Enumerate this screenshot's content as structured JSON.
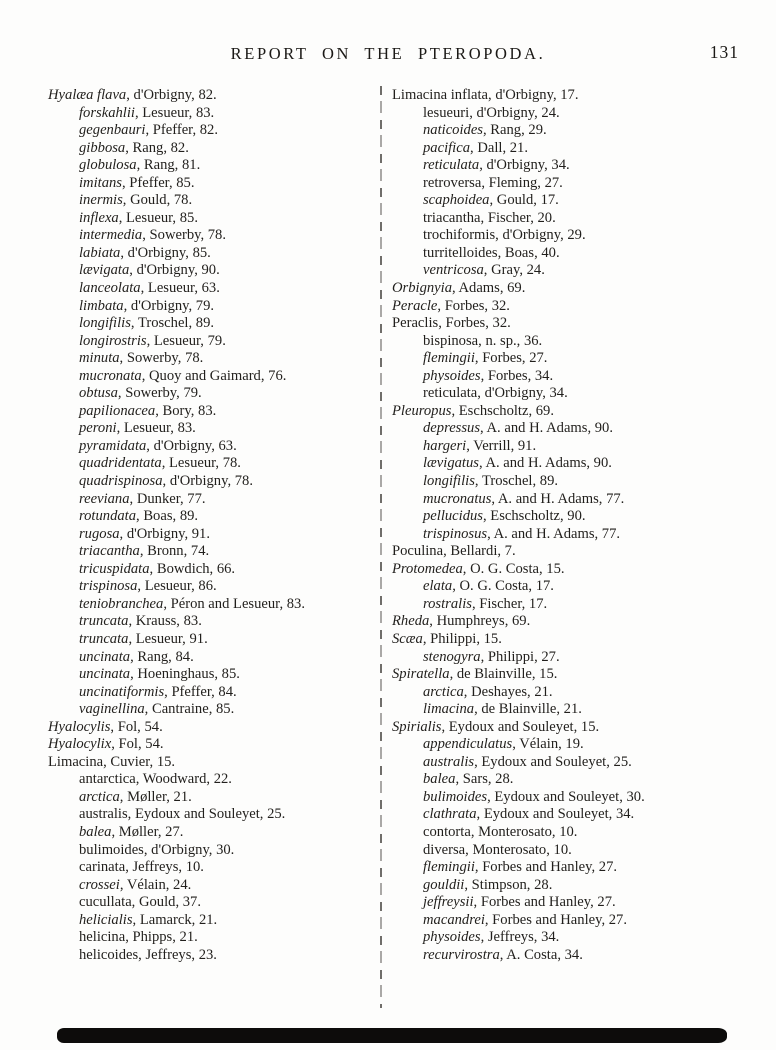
{
  "header": {
    "title": "REPORT ON THE PTEROPODA.",
    "page_number": "131"
  },
  "columns": {
    "left": [
      {
        "indent": 0,
        "italic": true,
        "name": "Hyalæa flava",
        "ref": "d'Orbigny, 82."
      },
      {
        "indent": 1,
        "italic": true,
        "name": "forskahlii",
        "ref": "Lesueur, 83."
      },
      {
        "indent": 1,
        "italic": true,
        "name": "gegenbauri",
        "ref": "Pfeffer, 82."
      },
      {
        "indent": 1,
        "italic": true,
        "name": "gibbosa",
        "ref": "Rang, 82."
      },
      {
        "indent": 1,
        "italic": true,
        "name": "globulosa",
        "ref": "Rang, 81."
      },
      {
        "indent": 1,
        "italic": true,
        "name": "imitans",
        "ref": "Pfeffer, 85."
      },
      {
        "indent": 1,
        "italic": true,
        "name": "inermis",
        "ref": "Gould, 78."
      },
      {
        "indent": 1,
        "italic": true,
        "name": "inflexa",
        "ref": "Lesueur, 85."
      },
      {
        "indent": 1,
        "italic": true,
        "name": "intermedia",
        "ref": "Sowerby, 78."
      },
      {
        "indent": 1,
        "italic": true,
        "name": "labiata",
        "ref": "d'Orbigny, 85."
      },
      {
        "indent": 1,
        "italic": true,
        "name": "lævigata",
        "ref": "d'Orbigny, 90."
      },
      {
        "indent": 1,
        "italic": true,
        "name": "lanceolata",
        "ref": "Lesueur, 63."
      },
      {
        "indent": 1,
        "italic": true,
        "name": "limbata",
        "ref": "d'Orbigny, 79."
      },
      {
        "indent": 1,
        "italic": true,
        "name": "longifilis",
        "ref": "Troschel, 89."
      },
      {
        "indent": 1,
        "italic": true,
        "name": "longirostris",
        "ref": "Lesueur, 79."
      },
      {
        "indent": 1,
        "italic": true,
        "name": "minuta",
        "ref": "Sowerby, 78."
      },
      {
        "indent": 1,
        "italic": true,
        "name": "mucronata",
        "ref": "Quoy and Gaimard, 76."
      },
      {
        "indent": 1,
        "italic": true,
        "name": "obtusa",
        "ref": "Sowerby, 79."
      },
      {
        "indent": 1,
        "italic": true,
        "name": "papilionacea",
        "ref": "Bory, 83."
      },
      {
        "indent": 1,
        "italic": true,
        "name": "peroni",
        "ref": "Lesueur, 83."
      },
      {
        "indent": 1,
        "italic": true,
        "name": "pyramidata",
        "ref": "d'Orbigny, 63."
      },
      {
        "indent": 1,
        "italic": true,
        "name": "quadridentata",
        "ref": "Lesueur, 78."
      },
      {
        "indent": 1,
        "italic": true,
        "name": "quadrispinosa",
        "ref": "d'Orbigny, 78."
      },
      {
        "indent": 1,
        "italic": true,
        "name": "reeviana",
        "ref": "Dunker, 77."
      },
      {
        "indent": 1,
        "italic": true,
        "name": "rotundata",
        "ref": "Boas, 89."
      },
      {
        "indent": 1,
        "italic": true,
        "name": "rugosa",
        "ref": "d'Orbigny, 91."
      },
      {
        "indent": 1,
        "italic": true,
        "name": "triacantha",
        "ref": "Bronn, 74."
      },
      {
        "indent": 1,
        "italic": true,
        "name": "tricuspidata",
        "ref": "Bowdich, 66."
      },
      {
        "indent": 1,
        "italic": true,
        "name": "trispinosa",
        "ref": "Lesueur, 86."
      },
      {
        "indent": 1,
        "italic": true,
        "name": "teniobranchea",
        "ref": "Péron and Lesueur, 83."
      },
      {
        "indent": 1,
        "italic": true,
        "name": "truncata",
        "ref": "Krauss, 83."
      },
      {
        "indent": 1,
        "italic": true,
        "name": "truncata",
        "ref": "Lesueur, 91."
      },
      {
        "indent": 1,
        "italic": true,
        "name": "uncinata",
        "ref": "Rang, 84."
      },
      {
        "indent": 1,
        "italic": true,
        "name": "uncinata",
        "ref": "Hoeninghaus, 85."
      },
      {
        "indent": 1,
        "italic": true,
        "name": "uncinatiformis",
        "ref": "Pfeffer, 84."
      },
      {
        "indent": 1,
        "italic": true,
        "name": "vaginellina",
        "ref": "Cantraine, 85."
      },
      {
        "indent": 0,
        "italic": true,
        "name": "Hyalocylis",
        "ref": "Fol, 54."
      },
      {
        "indent": 0,
        "italic": true,
        "name": "Hyalocylix",
        "ref": "Fol, 54."
      },
      {
        "indent": 0,
        "italic": false,
        "name": "Limacina",
        "ref": "Cuvier, 15."
      },
      {
        "indent": 1,
        "italic": false,
        "name": "antarctica",
        "ref": "Woodward, 22."
      },
      {
        "indent": 1,
        "italic": true,
        "name": "arctica",
        "ref": "Møller, 21."
      },
      {
        "indent": 1,
        "italic": false,
        "name": "australis",
        "ref": "Eydoux and Souleyet, 25."
      },
      {
        "indent": 1,
        "italic": true,
        "name": "balea",
        "ref": "Møller, 27."
      },
      {
        "indent": 1,
        "italic": false,
        "name": "bulimoides",
        "ref": "d'Orbigny, 30."
      },
      {
        "indent": 1,
        "italic": false,
        "name": "carinata",
        "ref": "Jeffreys, 10."
      },
      {
        "indent": 1,
        "italic": true,
        "name": "crossei",
        "ref": "Vélain, 24."
      },
      {
        "indent": 1,
        "italic": false,
        "name": "cucullata",
        "ref": "Gould, 37."
      },
      {
        "indent": 1,
        "italic": true,
        "name": "helicialis",
        "ref": "Lamarck, 21."
      },
      {
        "indent": 1,
        "italic": false,
        "name": "helicina",
        "ref": "Phipps, 21."
      },
      {
        "indent": 1,
        "italic": false,
        "name": "helicoides",
        "ref": "Jeffreys, 23."
      }
    ],
    "right": [
      {
        "indent": 0,
        "italic": false,
        "name": "Limacina inflata",
        "ref": "d'Orbigny, 17."
      },
      {
        "indent": 1,
        "italic": false,
        "name": "lesueuri",
        "ref": "d'Orbigny, 24."
      },
      {
        "indent": 1,
        "italic": true,
        "name": "naticoides",
        "ref": "Rang, 29."
      },
      {
        "indent": 1,
        "italic": true,
        "name": "pacifica",
        "ref": "Dall, 21."
      },
      {
        "indent": 1,
        "italic": true,
        "name": "reticulata",
        "ref": "d'Orbigny, 34."
      },
      {
        "indent": 1,
        "italic": false,
        "name": "retroversa",
        "ref": "Fleming, 27."
      },
      {
        "indent": 1,
        "italic": true,
        "name": "scaphoidea",
        "ref": "Gould, 17."
      },
      {
        "indent": 1,
        "italic": false,
        "name": "triacantha",
        "ref": "Fischer, 20."
      },
      {
        "indent": 1,
        "italic": false,
        "name": "trochiformis",
        "ref": "d'Orbigny, 29."
      },
      {
        "indent": 1,
        "italic": false,
        "name": "turritelloides",
        "ref": "Boas, 40."
      },
      {
        "indent": 1,
        "italic": true,
        "name": "ventricosa",
        "ref": "Gray, 24."
      },
      {
        "indent": 0,
        "italic": true,
        "name": "Orbignyia",
        "ref": "Adams, 69."
      },
      {
        "indent": 0,
        "italic": true,
        "name": "Peracle",
        "ref": "Forbes, 32."
      },
      {
        "indent": 0,
        "italic": false,
        "name": "Peraclis",
        "ref": "Forbes, 32."
      },
      {
        "indent": 1,
        "italic": false,
        "name": "bispinosa",
        "ref": "n. sp., 36."
      },
      {
        "indent": 1,
        "italic": true,
        "name": "flemingii",
        "ref": "Forbes, 27."
      },
      {
        "indent": 1,
        "italic": true,
        "name": "physoides",
        "ref": "Forbes, 34."
      },
      {
        "indent": 1,
        "italic": false,
        "name": "reticulata",
        "ref": "d'Orbigny, 34."
      },
      {
        "indent": 0,
        "italic": true,
        "name": "Pleuropus",
        "ref": "Eschscholtz, 69."
      },
      {
        "indent": 1,
        "italic": true,
        "name": "depressus",
        "ref": "A. and H. Adams, 90."
      },
      {
        "indent": 1,
        "italic": true,
        "name": "hargeri",
        "ref": "Verrill, 91."
      },
      {
        "indent": 1,
        "italic": true,
        "name": "lævigatus",
        "ref": "A. and H. Adams, 90."
      },
      {
        "indent": 1,
        "italic": true,
        "name": "longifilis",
        "ref": "Troschel, 89."
      },
      {
        "indent": 1,
        "italic": true,
        "name": "mucronatus",
        "ref": "A. and H. Adams, 77."
      },
      {
        "indent": 1,
        "italic": true,
        "name": "pellucidus",
        "ref": "Eschscholtz, 90."
      },
      {
        "indent": 1,
        "italic": true,
        "name": "trispinosus",
        "ref": "A. and H. Adams, 77."
      },
      {
        "indent": 0,
        "italic": false,
        "name": "Poculina",
        "ref": "Bellardi, 7."
      },
      {
        "indent": 0,
        "italic": true,
        "name": "Protomedea",
        "ref": "O. G. Costa, 15."
      },
      {
        "indent": 1,
        "italic": true,
        "name": "elata",
        "ref": "O. G. Costa, 17."
      },
      {
        "indent": 1,
        "italic": true,
        "name": "rostralis",
        "ref": "Fischer, 17."
      },
      {
        "indent": 0,
        "italic": true,
        "name": "Rheda",
        "ref": "Humphreys, 69."
      },
      {
        "indent": 0,
        "italic": true,
        "name": "Scæa",
        "ref": "Philippi, 15."
      },
      {
        "indent": 1,
        "italic": true,
        "name": "stenogyra",
        "ref": "Philippi, 27."
      },
      {
        "indent": 0,
        "italic": true,
        "name": "Spiratella",
        "ref": "de Blainville, 15."
      },
      {
        "indent": 1,
        "italic": true,
        "name": "arctica",
        "ref": "Deshayes, 21."
      },
      {
        "indent": 1,
        "italic": true,
        "name": "limacina",
        "ref": "de Blainville, 21."
      },
      {
        "indent": 0,
        "italic": true,
        "name": "Spirialis",
        "ref": "Eydoux and Souleyet, 15."
      },
      {
        "indent": 1,
        "italic": true,
        "name": "appendiculatus",
        "ref": "Vélain, 19."
      },
      {
        "indent": 1,
        "italic": true,
        "name": "australis",
        "ref": "Eydoux and Souleyet, 25."
      },
      {
        "indent": 1,
        "italic": true,
        "name": "balea",
        "ref": "Sars, 28."
      },
      {
        "indent": 1,
        "italic": true,
        "name": "bulimoides",
        "ref": "Eydoux and Souleyet, 30."
      },
      {
        "indent": 1,
        "italic": true,
        "name": "clathrata",
        "ref": "Eydoux and Souleyet, 34."
      },
      {
        "indent": 1,
        "italic": false,
        "name": "contorta",
        "ref": "Monterosato, 10."
      },
      {
        "indent": 1,
        "italic": false,
        "name": "diversa",
        "ref": "Monterosato, 10."
      },
      {
        "indent": 1,
        "italic": true,
        "name": "flemingii",
        "ref": "Forbes and Hanley, 27."
      },
      {
        "indent": 1,
        "italic": true,
        "name": "gouldii",
        "ref": "Stimpson, 28."
      },
      {
        "indent": 1,
        "italic": true,
        "name": "jeffreysii",
        "ref": "Forbes and Hanley, 27."
      },
      {
        "indent": 1,
        "italic": true,
        "name": "macandrei",
        "ref": "Forbes and Hanley, 27."
      },
      {
        "indent": 1,
        "italic": true,
        "name": "physoides",
        "ref": "Jeffreys, 34."
      },
      {
        "indent": 1,
        "italic": true,
        "name": "recurvirostra",
        "ref": "A. Costa, 34."
      }
    ]
  }
}
